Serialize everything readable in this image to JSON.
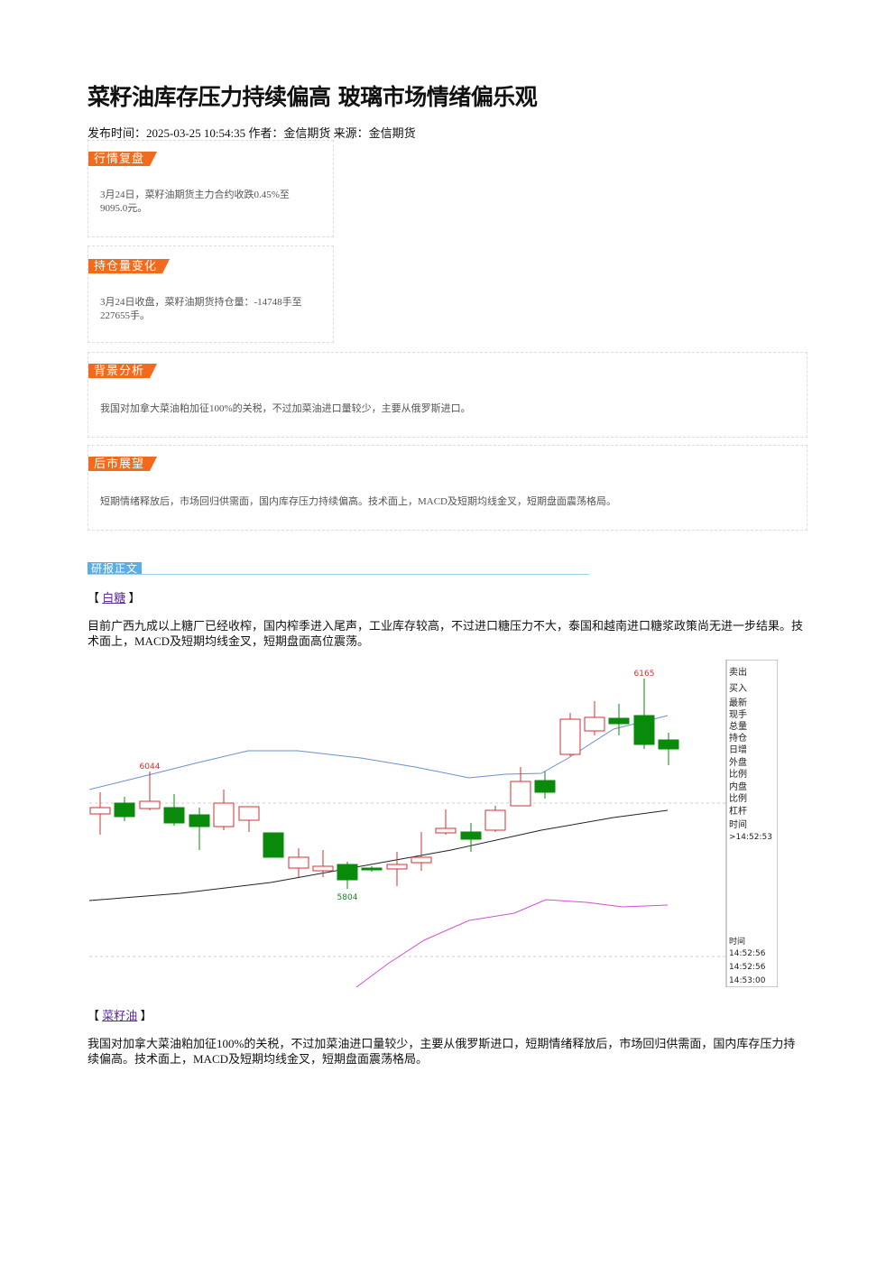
{
  "header": {
    "title": "菜籽油库存压力持续偏高 玻璃市场情绪偏乐观",
    "meta": "发布时间：2025-03-25 10:54:35 作者：金信期货 来源：金信期货"
  },
  "sections": [
    {
      "tag": "行情复盘",
      "text": "3月24日，菜籽油期货主力合约收跌0.45%至9095.0元。"
    },
    {
      "tag": "持仓量变化",
      "text": "3月24日收盘，菜籽油期货持仓量：-14748手至227655手。"
    },
    {
      "tag": "背景分析",
      "text": "我国对加拿大菜油粕加征100%的关税，不过加菜油进口量较少，主要从俄罗斯进口。"
    },
    {
      "tag": "后市展望",
      "text": "短期情绪释放后，市场回归供需面，国内库存压力持续偏高。技术面上，MACD及短期均线金叉，短期盘面震荡格局。"
    }
  ],
  "main": {
    "tag": "研报正文",
    "items": [
      {
        "open": "【",
        "name": "白糖",
        "close": "】",
        "text": "目前广西九成以上糖厂已经收榨，国内榨季进入尾声，工业库存较高，不过进口糖压力不大，泰国和越南进口糖浆政策尚无进一步结果。技术面上，MACD及短期均线金叉，短期盘面高位震荡。"
      },
      {
        "open": "【",
        "name": "菜籽油",
        "close": "】",
        "text": "我国对加拿大菜油粕加征100%的关税，不过加菜油进口量较少，主要从俄罗斯进口，短期情绪释放后，市场回归供需面，国内库存压力持续偏高。技术面上，MACD及短期均线金叉，短期盘面震荡格局。"
      }
    ]
  },
  "chart_image": {
    "labels": [
      "6044",
      "5804",
      "6165"
    ],
    "side_panel": [
      "卖出",
      "买入",
      "最新",
      "现手",
      "总量",
      "持仓",
      "日增",
      "外盘",
      "比例",
      "内盘",
      "比例",
      "杠杆",
      "时间",
      ">14:52:53",
      "时间",
      "14:52:56",
      "14:52:56",
      "14:53:00"
    ]
  }
}
